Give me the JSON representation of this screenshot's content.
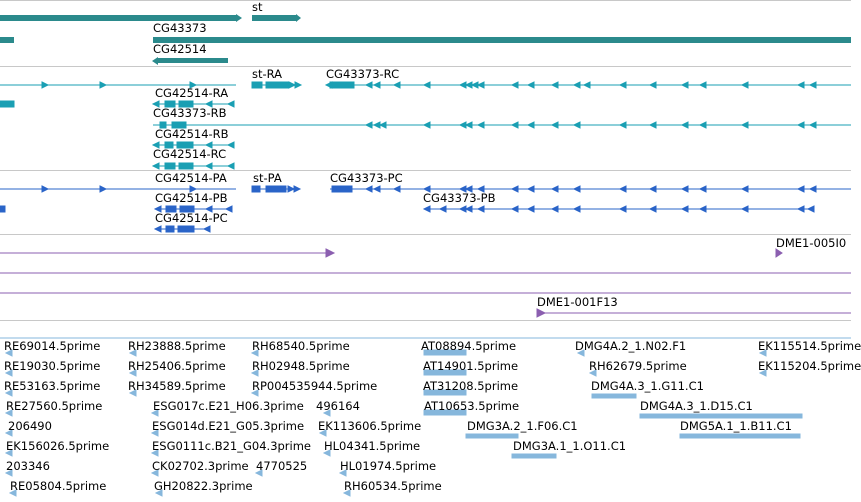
{
  "colors": {
    "gene": "#2b8a8c",
    "transcript_rna": "#1a9fb3",
    "transcript_protein": "#2a64c8",
    "clone": "#8b5fb0",
    "est": "#86b7dc",
    "separator": "#c8c8c8"
  },
  "gene_track": {
    "labels": [
      "st",
      "CG43373",
      "CG42514"
    ]
  },
  "rna_track": {
    "labels": [
      "st-RA",
      "CG43373-RC",
      "CG42514-RA",
      "CG43373-RB",
      "CG42514-RB",
      "CG42514-RC"
    ]
  },
  "protein_track": {
    "labels": [
      "CG42514-PA",
      "st-PA",
      "CG43373-PC",
      "CG42514-PB",
      "CG43373-PB",
      "CG42514-PC"
    ]
  },
  "clone_track": {
    "labels": [
      "DME1-005I0",
      "DME1-001F13"
    ]
  },
  "est_track": {
    "labels": [
      "RE69014.5prime",
      "RH23888.5prime",
      "RH68540.5prime",
      "AT08894.5prime",
      "DMG4A.2_1.N02.F1",
      "EK115514.5prime",
      "RE19030.5prime",
      "RH25406.5prime",
      "RH02948.5prime",
      "AT14901.5prime",
      "RH62679.5prime",
      "EK115204.5prime",
      "RE53163.5prime",
      "RH34589.5prime",
      "RP004535944.5prime",
      "AT31208.5prime",
      "DMG4A.3_1.G11.C1",
      "RE27560.5prime",
      "ESG017c.E21_H06.3prime",
      "496164",
      "AT10653.5prime",
      "DMG4A.3_1.D15.C1",
      "206490",
      "ESG014d.E21_G05.3prime",
      "EK113606.5prime",
      "DMG3A.2_1.F06.C1",
      "DMG5A.1_1.B11.C1",
      "EK156026.5prime",
      "ESG0111c.B21_G04.3prime",
      "HL04341.5prime",
      "DMG3A.1_1.O11.C1",
      "203346",
      "CK02702.3prime",
      "4770525",
      "HL01974.5prime",
      "RE05804.5prime",
      "GH20822.3prime",
      "RH60534.5prime"
    ]
  }
}
